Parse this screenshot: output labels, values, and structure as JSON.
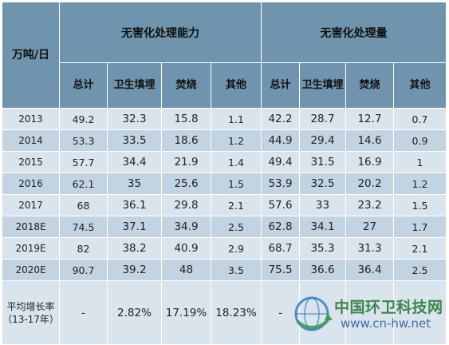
{
  "table": {
    "corner": "万吨/日",
    "group_capacity": "无害化处理能力",
    "group_volume": "无害化处理量",
    "sub_headers": [
      "总计",
      "卫生填埋",
      "焚烧",
      "其他",
      "总计",
      "卫生填埋",
      "焚烧",
      "其他"
    ],
    "rows": [
      {
        "year": "2013",
        "cells": [
          "49.2",
          "32.3",
          "15.8",
          "1.1",
          "42.2",
          "28.7",
          "12.7",
          "0.7"
        ]
      },
      {
        "year": "2014",
        "cells": [
          "53.3",
          "33.5",
          "18.6",
          "1.2",
          "44.9",
          "29.4",
          "14.6",
          "0.9"
        ]
      },
      {
        "year": "2015",
        "cells": [
          "57.7",
          "34.4",
          "21.9",
          "1.4",
          "49.4",
          "31.5",
          "16.9",
          "1"
        ]
      },
      {
        "year": "2016",
        "cells": [
          "62.1",
          "35",
          "25.6",
          "1.5",
          "53.9",
          "32.5",
          "20.2",
          "1.2"
        ]
      },
      {
        "year": "2017",
        "cells": [
          "68",
          "36.1",
          "29.8",
          "2.1",
          "57.6",
          "33",
          "23.2",
          "1.5"
        ]
      },
      {
        "year": "2018E",
        "cells": [
          "74.5",
          "37.1",
          "34.9",
          "2.5",
          "62.8",
          "34.1",
          "27",
          "1.7"
        ]
      },
      {
        "year": "2019E",
        "cells": [
          "82",
          "38.2",
          "40.9",
          "2.9",
          "68.7",
          "35.3",
          "31.3",
          "2.1"
        ]
      },
      {
        "year": "2020E",
        "cells": [
          "90.7",
          "39.2",
          "48",
          "3.5",
          "75.5",
          "36.6",
          "36.4",
          "2.5"
        ]
      }
    ],
    "growth_row": {
      "label": "平均增长率（13-17年）",
      "cells": [
        "-",
        "2.82%",
        "17.19%",
        "18.23%",
        "-",
        "",
        "",
        ""
      ]
    }
  },
  "watermark": {
    "name": "中国环卫科技网",
    "url": "www.cn-hw.net"
  }
}
